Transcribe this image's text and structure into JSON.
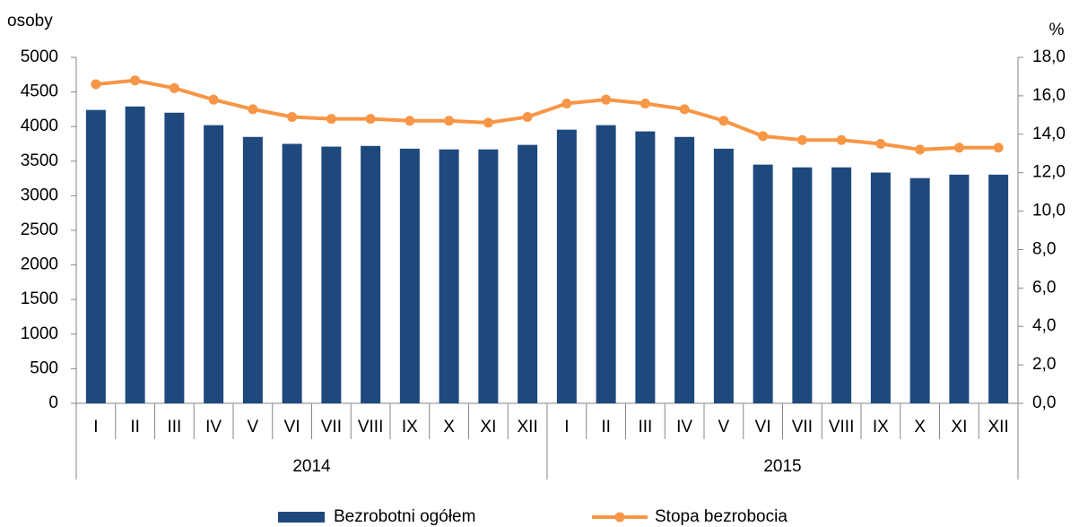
{
  "chart_data": {
    "type": "bar-line",
    "y_label": "osoby",
    "y2_label": "%",
    "categories": [
      "I",
      "II",
      "III",
      "IV",
      "V",
      "VI",
      "VII",
      "VIII",
      "IX",
      "X",
      "XI",
      "XII",
      "I",
      "II",
      "III",
      "IV",
      "V",
      "VI",
      "VII",
      "VIII",
      "IX",
      "X",
      "XI",
      "XII"
    ],
    "groups": [
      "2014",
      "2015"
    ],
    "series": [
      {
        "name": "Bezrobotni ogółem",
        "type": "bar",
        "color": "#1f497d",
        "values": [
          4240,
          4290,
          4200,
          4020,
          3850,
          3750,
          3710,
          3720,
          3680,
          3670,
          3670,
          3735,
          3955,
          4020,
          3930,
          3850,
          3680,
          3450,
          3410,
          3410,
          3335,
          3255,
          3305,
          3305
        ]
      },
      {
        "name": "Stopa bezrobocia",
        "type": "line",
        "axis": "y2",
        "color": "#f79646",
        "values": [
          16.6,
          16.8,
          16.4,
          15.8,
          15.3,
          14.9,
          14.8,
          14.8,
          14.7,
          14.7,
          14.6,
          14.9,
          15.6,
          15.8,
          15.6,
          15.3,
          14.7,
          13.9,
          13.7,
          13.7,
          13.5,
          13.2,
          13.3,
          13.3
        ]
      }
    ],
    "ylim": [
      0,
      5000
    ],
    "yticks": [
      0,
      500,
      1000,
      1500,
      2000,
      2500,
      3000,
      3500,
      4000,
      4500,
      5000
    ],
    "y2lim": [
      0,
      18
    ],
    "y2ticks": [
      {
        "value": 0,
        "label": "0,0"
      },
      {
        "value": 2,
        "label": "2,0"
      },
      {
        "value": 4,
        "label": "4,0"
      },
      {
        "value": 6,
        "label": "6,0"
      },
      {
        "value": 8,
        "label": "8,0"
      },
      {
        "value": 10,
        "label": "10,0"
      },
      {
        "value": 12,
        "label": "12,0"
      },
      {
        "value": 14,
        "label": "14,0"
      },
      {
        "value": 16,
        "label": "16,0"
      },
      {
        "value": 18,
        "label": "18,0"
      }
    ],
    "legend": "bottom"
  }
}
